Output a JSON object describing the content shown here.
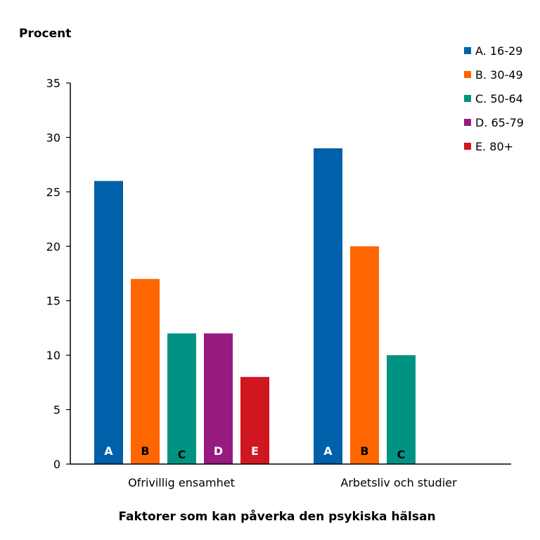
{
  "chart_data": {
    "type": "bar",
    "title": "",
    "ylabel": "Procent",
    "xlabel": "Faktorer som kan påverka den psykiska hälsan",
    "ylim": [
      0,
      35
    ],
    "yticks": [
      0,
      5,
      10,
      15,
      20,
      25,
      30,
      35
    ],
    "legend_position": "top-right",
    "categories": [
      "Ofrivillig ensamhet",
      "Arbetsliv och studier"
    ],
    "series": [
      {
        "name": "A. 16-29",
        "letter": "A",
        "color": "#0060A9",
        "letter_color": "#ffffff",
        "values": [
          26,
          29
        ]
      },
      {
        "name": "B. 30-49",
        "letter": "B",
        "color": "#FF6600",
        "letter_color": "#000000",
        "values": [
          17,
          20
        ]
      },
      {
        "name": "C. 50-64",
        "letter": "C",
        "color": "#009383",
        "letter_color": "#000000",
        "values": [
          12,
          10
        ]
      },
      {
        "name": "D. 65-79",
        "letter": "D",
        "color": "#951B81",
        "letter_color": "#ffffff",
        "values": [
          12,
          null
        ]
      },
      {
        "name": "E. 80+",
        "letter": "E",
        "color": "#D0161F",
        "letter_color": "#ffffff",
        "values": [
          8,
          null
        ]
      }
    ]
  }
}
